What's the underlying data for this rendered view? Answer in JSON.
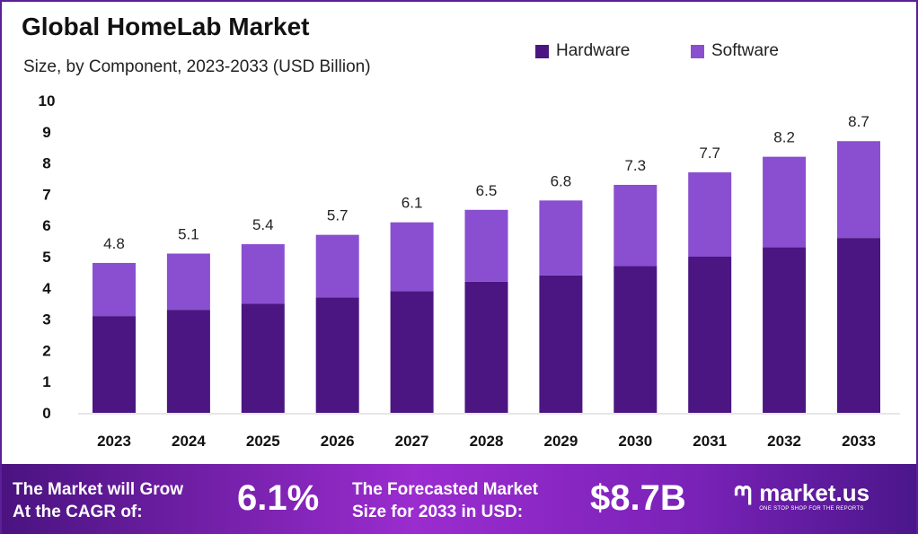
{
  "chart_data": {
    "type": "bar",
    "stacked": true,
    "title": "Global HomeLab Market",
    "subtitle": "Size, by Component, 2023-2033 (USD Billion)",
    "categories": [
      "2023",
      "2024",
      "2025",
      "2026",
      "2027",
      "2028",
      "2029",
      "2030",
      "2031",
      "2032",
      "2033"
    ],
    "series": [
      {
        "name": "Hardware",
        "color": "#4b1682",
        "values": [
          3.1,
          3.3,
          3.5,
          3.7,
          3.9,
          4.2,
          4.4,
          4.7,
          5.0,
          5.3,
          5.6
        ]
      },
      {
        "name": "Software",
        "color": "#8a4fd0",
        "values": [
          1.7,
          1.8,
          1.9,
          2.0,
          2.2,
          2.3,
          2.4,
          2.6,
          2.7,
          2.9,
          3.1
        ]
      }
    ],
    "totals": [
      "4.8",
      "5.1",
      "5.4",
      "5.7",
      "6.1",
      "6.5",
      "6.8",
      "7.3",
      "7.7",
      "8.2",
      "8.7"
    ],
    "yticks": [
      "0",
      "1",
      "2",
      "3",
      "4",
      "5",
      "6",
      "7",
      "8",
      "9",
      "10"
    ],
    "ylim": [
      0,
      10
    ],
    "xlabel": "",
    "ylabel": "",
    "grid": false,
    "legend_position": "top-right"
  },
  "footer": {
    "cagr_label_1": "The Market will Grow",
    "cagr_label_2": "At the CAGR of:",
    "cagr_value": "6.1%",
    "forecast_label_1": "The Forecasted Market",
    "forecast_label_2": "Size for 2033 in USD:",
    "forecast_value": "$8.7B",
    "logo_name": "market.us",
    "logo_tagline": "ONE STOP SHOP FOR THE REPORTS"
  }
}
